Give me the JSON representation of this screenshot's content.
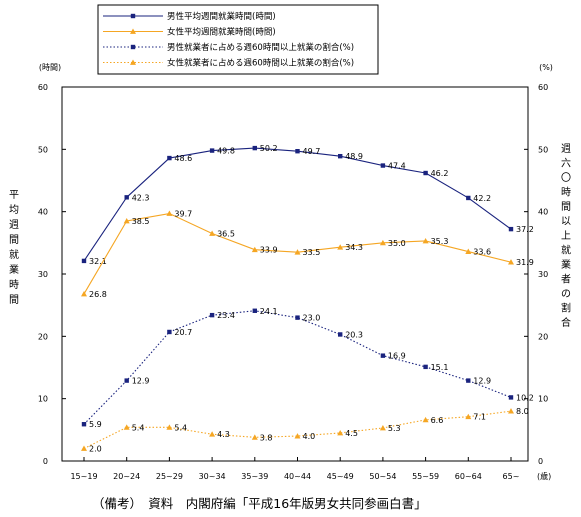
{
  "chart_data": {
    "type": "line",
    "categories": [
      "15~19",
      "20~24",
      "25~29",
      "30~34",
      "35~39",
      "40~44",
      "45~49",
      "50~54",
      "55~59",
      "60~64",
      "65~"
    ],
    "x_unit": "(歳)",
    "y_left": {
      "unit": "(時間)",
      "label": "平均週間就業時間",
      "range": [
        0,
        60
      ],
      "ticks": [
        "0",
        "10",
        "20",
        "30",
        "40",
        "50",
        "60"
      ]
    },
    "y_right": {
      "unit": "(%)",
      "label": "週六〇時間以上就業者の割合",
      "range": [
        0,
        60
      ],
      "ticks": [
        "0",
        "10",
        "20",
        "30",
        "40",
        "50",
        "60"
      ]
    },
    "grid": false,
    "legend_position": "top-center",
    "series": [
      {
        "name": "男性平均週間就業時間(時間)",
        "axis": "left",
        "style": "solid",
        "marker": "square",
        "color": "#1a237e",
        "values": [
          32.1,
          42.3,
          48.6,
          49.8,
          50.2,
          49.7,
          48.9,
          47.4,
          46.2,
          42.2,
          37.2
        ],
        "labels": [
          "32.1",
          "42.3",
          "48.6",
          "49.8",
          "50.2",
          "49.7",
          "48.9",
          "47.4",
          "46.2",
          "42.2",
          "37.2"
        ]
      },
      {
        "name": "女性平均週間就業時間(時間)",
        "axis": "left",
        "style": "solid",
        "marker": "triangle",
        "color": "#f5a623",
        "values": [
          26.8,
          38.5,
          39.7,
          36.5,
          33.9,
          33.5,
          34.3,
          35.0,
          35.3,
          33.6,
          31.9
        ],
        "labels": [
          "26.8",
          "38.5",
          "39.7",
          "36.5",
          "33.9",
          "33.5",
          "34.3",
          "35.0",
          "35.3",
          "33.6",
          "31.9"
        ]
      },
      {
        "name": "男性就業者に占める週60時間以上就業の割合(%)",
        "axis": "right",
        "style": "dotted",
        "marker": "square",
        "color": "#1a237e",
        "values": [
          5.9,
          12.9,
          20.7,
          23.4,
          24.1,
          23.0,
          20.3,
          16.9,
          15.1,
          12.9,
          10.2
        ],
        "labels": [
          "5.9",
          "12.9",
          "20.7",
          "23.4",
          "24.1",
          "23.0",
          "20.3",
          "16.9",
          "15.1",
          "12.9",
          "10.2"
        ]
      },
      {
        "name": "女性就業者に占める週60時間以上就業の割合(%)",
        "axis": "right",
        "style": "dotted",
        "marker": "triangle",
        "color": "#f5a623",
        "values": [
          2.0,
          5.4,
          5.4,
          4.3,
          3.8,
          4.0,
          4.5,
          5.3,
          6.6,
          7.1,
          8.0
        ],
        "labels": [
          "2.0",
          "5.4",
          "5.4",
          "4.3",
          "3.8",
          "4.0",
          "4.5",
          "5.3",
          "6.6",
          "7.1",
          "8.0"
        ]
      }
    ]
  },
  "source_note": "（備考）　資料　内閣府編「平成16年版男女共同参画白書」"
}
